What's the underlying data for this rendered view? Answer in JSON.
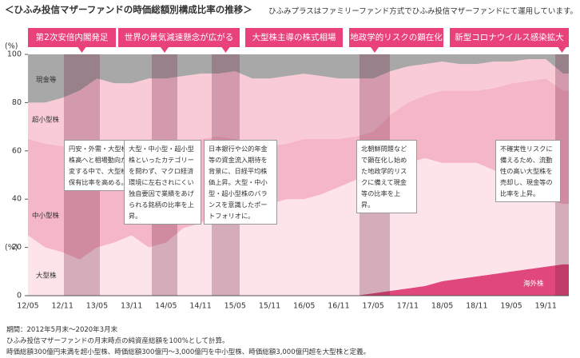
{
  "chart_data": {
    "type": "stacked-area",
    "title": "＜ひふみ投信マザーファンドの時価総額別構成比率の推移＞",
    "subtitle": "ひふみプラスはファミリーファンド方式でひふみ投信マザーファンドにて運用しています。",
    "y_unit_labels": [
      "(%)",
      "(%)"
    ],
    "x": [
      "12/05",
      null,
      "12/11",
      null,
      "13/05",
      null,
      "13/11",
      null,
      "14/05",
      null,
      "14/11",
      null,
      "15/05",
      null,
      "15/11",
      null,
      "16/05",
      null,
      "16/11",
      null,
      "17/05",
      null,
      "17/11",
      null,
      "18/05",
      null,
      "18/11",
      null,
      "19/05",
      null,
      "19/11",
      null
    ],
    "series": [
      {
        "name": "海外株",
        "color": "#e0477c",
        "values": [
          0,
          0,
          0,
          0,
          0,
          0,
          0,
          0,
          0,
          0,
          0,
          0,
          0,
          0,
          0,
          0,
          0,
          0,
          0,
          0,
          1,
          2,
          3,
          4,
          6,
          7,
          8,
          9,
          10,
          11,
          12,
          13
        ]
      },
      {
        "name": "大型株",
        "color": "#fde3ea",
        "values": [
          25,
          20,
          18,
          15,
          20,
          22,
          25,
          20,
          22,
          28,
          30,
          35,
          38,
          35,
          38,
          40,
          40,
          42,
          45,
          48,
          49,
          53,
          52,
          53,
          49,
          48,
          47,
          43,
          38,
          34,
          28,
          25
        ]
      },
      {
        "name": "中小型株",
        "color": "#f5b6c8",
        "values": [
          40,
          43,
          44,
          45,
          40,
          36,
          30,
          38,
          38,
          34,
          35,
          31,
          27,
          28,
          24,
          23,
          25,
          23,
          20,
          18,
          18,
          20,
          25,
          26,
          30,
          30,
          30,
          34,
          40,
          44,
          50,
          47
        ]
      },
      {
        "name": "超小型株",
        "color": "#f9cbd7",
        "values": [
          15,
          17,
          20,
          25,
          30,
          30,
          33,
          32,
          30,
          29,
          27,
          26,
          28,
          27,
          28,
          28,
          27,
          26,
          25,
          24,
          22,
          18,
          15,
          13,
          12,
          11,
          11,
          11,
          9,
          9,
          8,
          7
        ]
      },
      {
        "name": "現金等",
        "color": "#a8a8a8",
        "values": [
          20,
          20,
          18,
          15,
          10,
          12,
          12,
          10,
          10,
          9,
          8,
          8,
          7,
          10,
          10,
          9,
          8,
          9,
          10,
          10,
          10,
          7,
          5,
          4,
          3,
          4,
          4,
          3,
          3,
          2,
          2,
          8
        ]
      }
    ],
    "ylim": [
      0,
      100
    ],
    "yticks": [
      0,
      20,
      40,
      60,
      80,
      100
    ],
    "grid": false,
    "annotations": [
      {
        "title": "第2次安倍内閣発足",
        "text": "円安・外需・大型株・株高へと相場動向が一変する中で、大型株の保有比率を高める。"
      },
      {
        "title": "世界の景気減速懸念が広がる",
        "text": "大型・中小型・超小型株といったカテゴリーを問わず、マクロ経済環境に左右されにくい独自要因で業績をあげられる銘柄の比率を上昇。"
      },
      {
        "title": "大型株主導の株式相場",
        "text": "日本銀行や公的年金等の資金流入期待を背景に、日経平均株価上昇。大型・中小型・超小型株のバランスを意識したポートフォリオに。"
      },
      {
        "title": "地政学的リスクの顕在化",
        "text": "北朝鮮問題などで顕在化し始めた地政学的リスクに備えて現金等の比率を上昇。"
      },
      {
        "title": "新型コロナウイルス感染拡大",
        "text": "不確実性リスクに備えるため、流動性の高い大型株を売却し、現金等の比率を上昇。"
      }
    ],
    "notes": [
      "期間：2012年5月末～2020年3月末",
      "ひふみ投信マザーファンドの月末時点の純資産総額を100%として計算。",
      "時価総額300億円未満を超小型株、時価総額300億円～3,000億円を中小型株、時価総額3,000億円超を大型株と定義。"
    ]
  }
}
